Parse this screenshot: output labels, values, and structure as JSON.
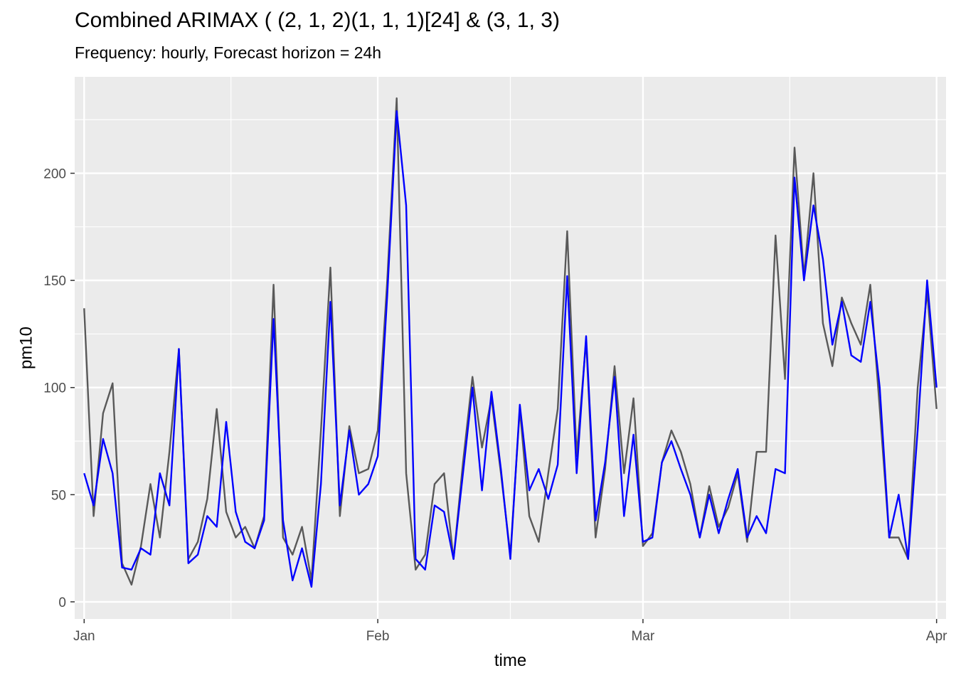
{
  "chart_data": {
    "type": "line",
    "title": "Combined ARIMAX ( (2, 1, 2)(1, 1, 1)[24] & (3, 1, 3)",
    "subtitle": "Frequency: hourly, Forecast horizon = 24h",
    "xlabel": "time",
    "ylabel": "pm10",
    "x_ticks": [
      "Jan",
      "Feb",
      "Mar",
      "Apr"
    ],
    "x_tick_dates": [
      "2019-01-01",
      "2019-02-01",
      "2019-03-01",
      "2019-04-01"
    ],
    "y_ticks": [
      0,
      50,
      100,
      150,
      200
    ],
    "xlim": [
      "2018-12-31",
      "2019-04-02"
    ],
    "ylim": [
      -8,
      245
    ],
    "grid": true,
    "legend": "none",
    "panel_background": "#ebebeb",
    "grid_color": "#ffffff",
    "series": [
      {
        "color": "#595959",
        "x": [
          "2019-01-01",
          "2019-01-02",
          "2019-01-03",
          "2019-01-04",
          "2019-01-05",
          "2019-01-06",
          "2019-01-07",
          "2019-01-08",
          "2019-01-09",
          "2019-01-10",
          "2019-01-11",
          "2019-01-12",
          "2019-01-13",
          "2019-01-14",
          "2019-01-15",
          "2019-01-16",
          "2019-01-17",
          "2019-01-18",
          "2019-01-19",
          "2019-01-20",
          "2019-01-21",
          "2019-01-22",
          "2019-01-23",
          "2019-01-24",
          "2019-01-25",
          "2019-01-26",
          "2019-01-27",
          "2019-01-28",
          "2019-01-29",
          "2019-01-30",
          "2019-01-31",
          "2019-02-01",
          "2019-02-02",
          "2019-02-03",
          "2019-02-04",
          "2019-02-05",
          "2019-02-06",
          "2019-02-07",
          "2019-02-08",
          "2019-02-09",
          "2019-02-10",
          "2019-02-11",
          "2019-02-12",
          "2019-02-13",
          "2019-02-14",
          "2019-02-15",
          "2019-02-16",
          "2019-02-17",
          "2019-02-18",
          "2019-02-19",
          "2019-02-20",
          "2019-02-21",
          "2019-02-22",
          "2019-02-23",
          "2019-02-24",
          "2019-02-25",
          "2019-02-26",
          "2019-02-27",
          "2019-02-28",
          "2019-03-01",
          "2019-03-02",
          "2019-03-03",
          "2019-03-04",
          "2019-03-05",
          "2019-03-06",
          "2019-03-07",
          "2019-03-08",
          "2019-03-09",
          "2019-03-10",
          "2019-03-11",
          "2019-03-12",
          "2019-03-13",
          "2019-03-14",
          "2019-03-15",
          "2019-03-16",
          "2019-03-17",
          "2019-03-18",
          "2019-03-19",
          "2019-03-20",
          "2019-03-21",
          "2019-03-22",
          "2019-03-23",
          "2019-03-24",
          "2019-03-25",
          "2019-03-26",
          "2019-03-27",
          "2019-03-28",
          "2019-03-29",
          "2019-03-30",
          "2019-03-31",
          "2019-04-01"
        ],
        "y": [
          137,
          40,
          88,
          102,
          18,
          8,
          26,
          55,
          30,
          70,
          118,
          20,
          28,
          48,
          90,
          42,
          30,
          35,
          25,
          40,
          148,
          30,
          22,
          35,
          10,
          80,
          156,
          40,
          82,
          60,
          62,
          80,
          150,
          235,
          60,
          15,
          22,
          55,
          60,
          20,
          65,
          105,
          72,
          95,
          60,
          22,
          90,
          40,
          28,
          60,
          90,
          173,
          68,
          122,
          30,
          62,
          110,
          60,
          95,
          26,
          32,
          65,
          80,
          70,
          55,
          30,
          54,
          35,
          44,
          60,
          28,
          70,
          70,
          171,
          104,
          212,
          152,
          200,
          130,
          110,
          142,
          130,
          120,
          148,
          90,
          30,
          30,
          20,
          100,
          145,
          90
        ]
      },
      {
        "color": "#0000ff",
        "x": [
          "2019-01-01",
          "2019-01-02",
          "2019-01-03",
          "2019-01-04",
          "2019-01-05",
          "2019-01-06",
          "2019-01-07",
          "2019-01-08",
          "2019-01-09",
          "2019-01-10",
          "2019-01-11",
          "2019-01-12",
          "2019-01-13",
          "2019-01-14",
          "2019-01-15",
          "2019-01-16",
          "2019-01-17",
          "2019-01-18",
          "2019-01-19",
          "2019-01-20",
          "2019-01-21",
          "2019-01-22",
          "2019-01-23",
          "2019-01-24",
          "2019-01-25",
          "2019-01-26",
          "2019-01-27",
          "2019-01-28",
          "2019-01-29",
          "2019-01-30",
          "2019-01-31",
          "2019-02-01",
          "2019-02-02",
          "2019-02-03",
          "2019-02-04",
          "2019-02-05",
          "2019-02-06",
          "2019-02-07",
          "2019-02-08",
          "2019-02-09",
          "2019-02-10",
          "2019-02-11",
          "2019-02-12",
          "2019-02-13",
          "2019-02-14",
          "2019-02-15",
          "2019-02-16",
          "2019-02-17",
          "2019-02-18",
          "2019-02-19",
          "2019-02-20",
          "2019-02-21",
          "2019-02-22",
          "2019-02-23",
          "2019-02-24",
          "2019-02-25",
          "2019-02-26",
          "2019-02-27",
          "2019-02-28",
          "2019-03-01",
          "2019-03-02",
          "2019-03-03",
          "2019-03-04",
          "2019-03-05",
          "2019-03-06",
          "2019-03-07",
          "2019-03-08",
          "2019-03-09",
          "2019-03-10",
          "2019-03-11",
          "2019-03-12",
          "2019-03-13",
          "2019-03-14",
          "2019-03-15",
          "2019-03-16",
          "2019-03-17",
          "2019-03-18",
          "2019-03-19",
          "2019-03-20",
          "2019-03-21",
          "2019-03-22",
          "2019-03-23",
          "2019-03-24",
          "2019-03-25",
          "2019-03-26",
          "2019-03-27",
          "2019-03-28",
          "2019-03-29",
          "2019-03-30",
          "2019-03-31",
          "2019-04-01"
        ],
        "y": [
          60,
          45,
          76,
          60,
          16,
          15,
          25,
          22,
          60,
          45,
          118,
          18,
          22,
          40,
          35,
          84,
          42,
          28,
          25,
          38,
          132,
          38,
          10,
          25,
          7,
          55,
          140,
          45,
          80,
          50,
          55,
          68,
          143,
          229,
          185,
          20,
          15,
          45,
          42,
          20,
          60,
          100,
          52,
          98,
          62,
          20,
          92,
          52,
          62,
          48,
          64,
          152,
          60,
          124,
          38,
          65,
          105,
          40,
          78,
          28,
          30,
          65,
          75,
          62,
          50,
          30,
          50,
          32,
          48,
          62,
          30,
          40,
          32,
          62,
          60,
          198,
          150,
          185,
          160,
          120,
          140,
          115,
          112,
          140,
          100,
          30,
          50,
          20,
          80,
          150,
          100
        ]
      }
    ]
  }
}
